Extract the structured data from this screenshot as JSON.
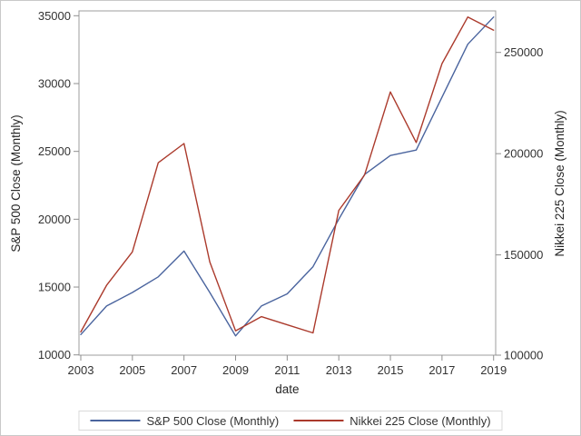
{
  "figure": {
    "background": "#ffffff",
    "border_color": "#c9c9c9"
  },
  "axes": {
    "frame_color": "#9c9c9c",
    "tick_color": "#8f8f8f",
    "tick_label_color": "#333333",
    "title_color": "#262626"
  },
  "legend": {
    "border_color": "#d9d9d9",
    "position": "bottom"
  },
  "chart_data": {
    "type": "line",
    "title": "",
    "xlabel": "date",
    "ylabel_left": "S&P 500 Close (Monthly)",
    "ylabel_right": "Nikkei 225 Close (Monthly)",
    "x": [
      2003,
      2004,
      2005,
      2006,
      2007,
      2008,
      2009,
      2010,
      2011,
      2012,
      2013,
      2014,
      2015,
      2016,
      2017,
      2018,
      2019
    ],
    "series": [
      {
        "name": "S&P 500 Close (Monthly)",
        "yaxis": "left",
        "color": "#4a649e",
        "values": [
          11500,
          13600,
          14600,
          15750,
          17650,
          14600,
          11400,
          13600,
          14500,
          16500,
          20000,
          23300,
          24700,
          25100,
          29000,
          32900,
          34900
        ]
      },
      {
        "name": "Nikkei 225 Close (Monthly)",
        "yaxis": "right",
        "color": "#ab3a2c",
        "values": [
          112000,
          135000,
          151500,
          195500,
          205000,
          146500,
          112500,
          119500,
          115500,
          111500,
          172000,
          189500,
          230500,
          205500,
          244500,
          267500,
          261000
        ]
      }
    ],
    "x_ticks": [
      2003,
      2005,
      2007,
      2009,
      2011,
      2013,
      2015,
      2017,
      2019
    ],
    "y_ticks_left": [
      10000,
      15000,
      20000,
      25000,
      30000,
      35000
    ],
    "y_ticks_right": [
      100000,
      150000,
      200000,
      250000
    ],
    "xlim": [
      2002.93,
      2019.08
    ],
    "ylim_left": [
      9980,
      35356
    ],
    "ylim_right": [
      100500,
      270500
    ],
    "grid": false,
    "legend_position": "bottom"
  }
}
